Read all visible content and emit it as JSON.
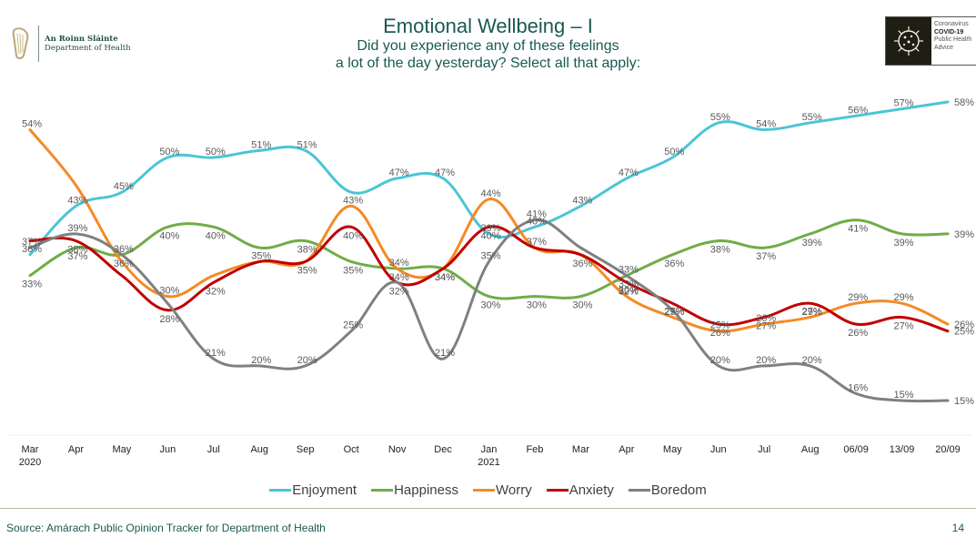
{
  "header": {
    "org_name_irish": "An Roinn Sláinte",
    "org_name_english": "Department of Health",
    "logo_icon": "harp-icon",
    "covid_badge": {
      "icon": "virus-icon",
      "line1": "Coronavirus",
      "line2": "COVID-19",
      "line3": "Public Health",
      "line4": "Advice"
    }
  },
  "chart_data": {
    "type": "line",
    "title": "Emotional Wellbeing – I",
    "subtitle_line1": "Did you experience any of these feelings",
    "subtitle_line2": "a lot of the day yesterday? Select all that apply:",
    "xlabel": "",
    "ylabel": "",
    "ylim": [
      0,
      60
    ],
    "grid": false,
    "legend_position": "bottom",
    "categories": [
      "Mar 2020",
      "Apr",
      "May",
      "Jun",
      "Jul",
      "Aug",
      "Sep",
      "Oct",
      "Nov",
      "Dec",
      "Jan 2021",
      "Feb",
      "Mar",
      "Apr",
      "May",
      "Jun",
      "Jul",
      "Aug",
      "06/09",
      "13/09",
      "20/09"
    ],
    "tick_labels": [
      {
        "line1": "Mar",
        "line2": "2020"
      },
      {
        "line1": "Apr",
        "line2": ""
      },
      {
        "line1": "May",
        "line2": ""
      },
      {
        "line1": "Jun",
        "line2": ""
      },
      {
        "line1": "Jul",
        "line2": ""
      },
      {
        "line1": "Aug",
        "line2": ""
      },
      {
        "line1": "Sep",
        "line2": ""
      },
      {
        "line1": "Oct",
        "line2": ""
      },
      {
        "line1": "Nov",
        "line2": ""
      },
      {
        "line1": "Dec",
        "line2": ""
      },
      {
        "line1": "Jan",
        "line2": "2021"
      },
      {
        "line1": "Feb",
        "line2": ""
      },
      {
        "line1": "Mar",
        "line2": ""
      },
      {
        "line1": "Apr",
        "line2": ""
      },
      {
        "line1": "May",
        "line2": ""
      },
      {
        "line1": "Jun",
        "line2": ""
      },
      {
        "line1": "Jul",
        "line2": ""
      },
      {
        "line1": "Aug",
        "line2": ""
      },
      {
        "line1": "06/09",
        "line2": ""
      },
      {
        "line1": "13/09",
        "line2": ""
      },
      {
        "line1": "20/09",
        "line2": ""
      }
    ],
    "series": [
      {
        "name": "Enjoyment",
        "color": "#4BC5D6",
        "values": [
          36,
          43,
          45,
          50,
          50,
          51,
          51,
          45,
          47,
          47,
          39,
          40,
          43,
          47,
          50,
          55,
          54,
          55,
          56,
          57,
          58
        ],
        "labeled": [
          true,
          true,
          true,
          true,
          true,
          true,
          true,
          false,
          true,
          true,
          true,
          true,
          true,
          true,
          true,
          true,
          true,
          true,
          true,
          true,
          true
        ]
      },
      {
        "name": "Happiness",
        "color": "#70AD47",
        "values": [
          33,
          37,
          36,
          40,
          40,
          37,
          38,
          35,
          34,
          34,
          30,
          30,
          30,
          33,
          36,
          38,
          37,
          39,
          41,
          39,
          39
        ],
        "labeled": [
          true,
          true,
          true,
          true,
          true,
          false,
          true,
          true,
          true,
          true,
          true,
          true,
          true,
          true,
          true,
          true,
          true,
          true,
          true,
          true,
          true
        ]
      },
      {
        "name": "Worry",
        "color": "#F58A25",
        "values": [
          54,
          46,
          35,
          30,
          33,
          35,
          35,
          43,
          34,
          34,
          44,
          37,
          36,
          30,
          27,
          25,
          26,
          27,
          29,
          29,
          26
        ],
        "labeled": [
          true,
          false,
          false,
          true,
          false,
          true,
          false,
          true,
          true,
          false,
          true,
          true,
          false,
          true,
          true,
          true,
          true,
          true,
          true,
          true,
          true
        ]
      },
      {
        "name": "Anxiety",
        "color": "#C00000",
        "values": [
          38,
          38,
          33,
          28,
          32,
          35,
          35,
          40,
          32,
          34,
          40,
          37,
          36,
          32,
          29,
          26,
          27,
          29,
          26,
          27,
          25
        ],
        "labeled": [
          false,
          true,
          false,
          true,
          true,
          false,
          true,
          true,
          true,
          true,
          true,
          false,
          true,
          true,
          true,
          true,
          true,
          true,
          true,
          true,
          true
        ]
      },
      {
        "name": "Boredom",
        "color": "#808080",
        "values": [
          37,
          39,
          36,
          29,
          21,
          20,
          20,
          25,
          32,
          21,
          35,
          41,
          37,
          33,
          28,
          20,
          20,
          20,
          16,
          15,
          15
        ],
        "labeled": [
          true,
          true,
          true,
          false,
          true,
          true,
          true,
          true,
          false,
          true,
          true,
          true,
          false,
          true,
          false,
          true,
          true,
          true,
          true,
          true,
          true
        ]
      }
    ]
  },
  "legend": {
    "items": [
      "Enjoyment",
      "Happiness",
      "Worry",
      "Anxiety",
      "Boredom"
    ]
  },
  "footer": {
    "source": "Source: Amárach Public Opinion Tracker for Department of Health",
    "page_number": "14"
  }
}
